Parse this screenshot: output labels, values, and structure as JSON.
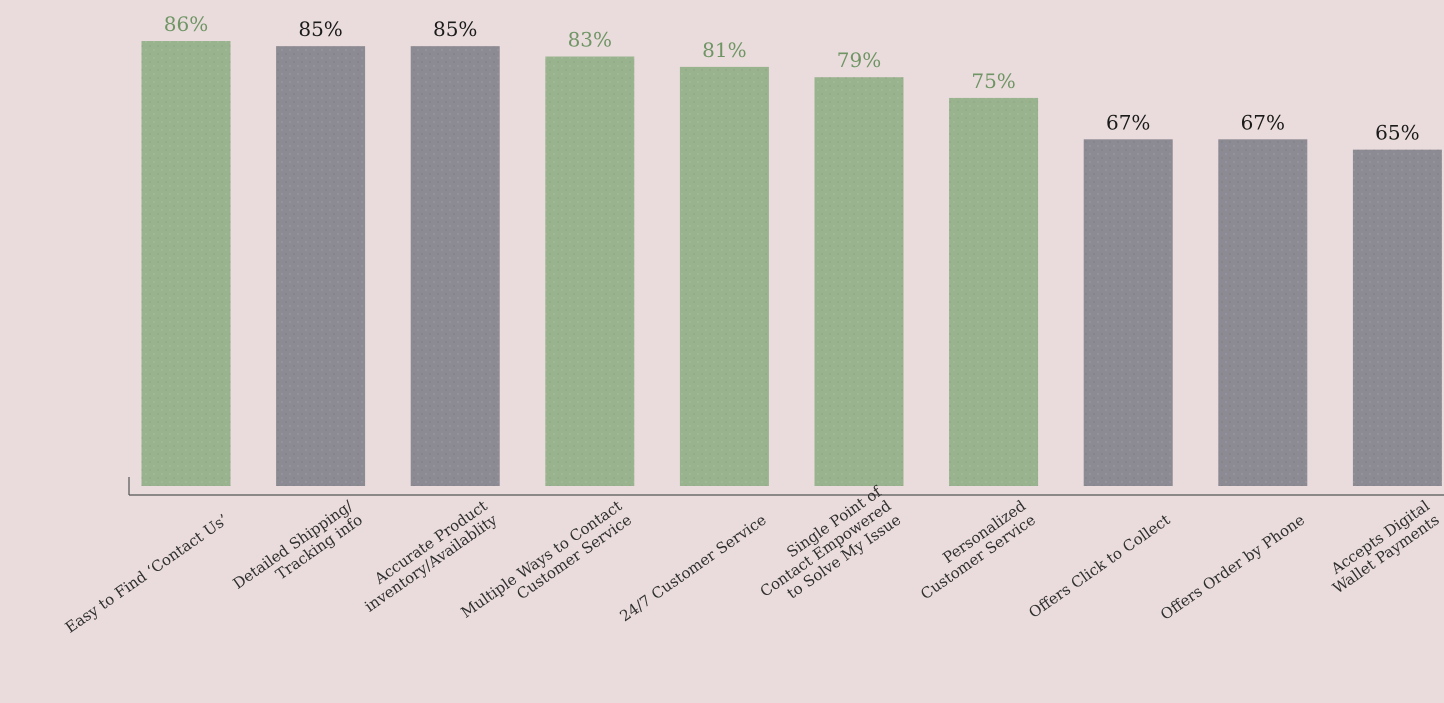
{
  "chart_data": {
    "type": "bar",
    "title": "",
    "xlabel": "",
    "ylabel": "",
    "ylim": [
      0,
      86
    ],
    "grid": false,
    "legend": "none",
    "value_suffix": "%",
    "categories": [
      [
        "Easy to Find ‘Contact Us’"
      ],
      [
        "Detailed Shipping/",
        "Tracking info"
      ],
      [
        "Accurate Product",
        "inventory/Availablity"
      ],
      [
        "Multiple Ways to Contact",
        "Customer Service"
      ],
      [
        "24/7 Customer Service"
      ],
      [
        "Single Point of",
        "Contact Empowered",
        "to Solve My Issue"
      ],
      [
        "Personalized",
        "Customer Service"
      ],
      [
        "Offers Click to Collect"
      ],
      [
        "Offers Order by Phone"
      ],
      [
        "Accepts Digital",
        "Wallet Payments"
      ]
    ],
    "values": [
      86,
      85,
      85,
      83,
      81,
      79,
      75,
      67,
      67,
      65
    ],
    "highlight": [
      true,
      false,
      false,
      true,
      true,
      true,
      true,
      false,
      false,
      false
    ],
    "colors": {
      "highlight_bar": "#99b38e",
      "normal_bar": "#8c8a92",
      "highlight_label": "#6f9565",
      "normal_label": "#1a1a1a",
      "axis": "#555555",
      "background": "#eadcdc"
    }
  }
}
